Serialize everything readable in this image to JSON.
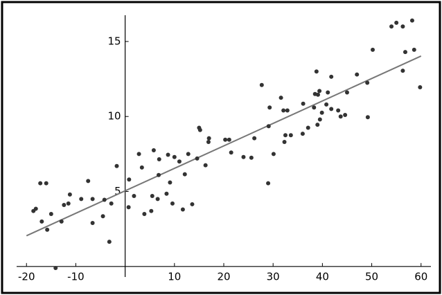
{
  "chart_data": {
    "type": "scatter",
    "x": [
      -18.6,
      -18.1,
      -17.2,
      -16,
      -16.9,
      -15.8,
      -15,
      -14.1,
      -12.9,
      -12.4,
      -11.5,
      -11.2,
      -8.9,
      -7.5,
      -6.6,
      -6.6,
      -4.5,
      -4.2,
      -3.2,
      -2.8,
      -1.7,
      0.7,
      0.8,
      1.8,
      2.8,
      3.4,
      3.9,
      5.3,
      5.5,
      5.8,
      6.6,
      6.8,
      6.9,
      8.4,
      8.7,
      9.1,
      9.6,
      10,
      11,
      11.7,
      12.1,
      12.8,
      13.6,
      14.6,
      15,
      15.2,
      16.3,
      16.9,
      17,
      20.3,
      21.1,
      21.5,
      24,
      25.6,
      26.2,
      27.7,
      29,
      29.3,
      29.1,
      30.1,
      31.6,
      32.1,
      32.3,
      32.5,
      32.9,
      33.6,
      36,
      36.1,
      37.1,
      38.3,
      38.5,
      38.8,
      39,
      39.1,
      39.4,
      39.5,
      39.9,
      40.8,
      41.1,
      41.8,
      41.8,
      43.2,
      43.7,
      44.6,
      45,
      47,
      49.1,
      49.2,
      50.2,
      54,
      55,
      56.3,
      56.3,
      56.8,
      58.2,
      58.6,
      59.8
    ],
    "series": [
      {
        "color": "#333333",
        "values": [
          3.7,
          3.85,
          5.55,
          5.55,
          3.0,
          2.45,
          3.5,
          -0.1,
          3.0,
          4.1,
          4.2,
          4.8,
          4.5,
          5.7,
          2.9,
          4.5,
          3.35,
          4.45,
          1.65,
          4.2,
          6.7,
          3.95,
          5.8,
          4.7,
          7.5,
          6.6,
          3.5,
          3.7,
          4.7,
          7.75,
          4.5,
          6.1,
          7.15,
          4.85,
          7.45,
          5.6,
          4.2,
          7.3,
          7.0,
          3.8,
          6.15,
          7.5,
          4.15,
          7.2,
          9.25,
          9.1,
          6.75,
          8.3,
          8.55,
          8.45,
          8.45,
          7.6,
          7.3,
          7.25,
          8.55,
          12.1,
          5.55,
          10.6,
          9.35,
          7.5,
          11.25,
          10.4,
          8.3,
          8.75,
          10.4,
          8.75,
          8.85,
          10.85,
          9.25,
          10.6,
          11.5,
          13.0,
          9.45,
          11.45,
          11.7,
          9.8,
          10.25,
          10.8,
          11.6,
          12.65,
          10.5,
          10.4,
          10.0,
          10.1,
          11.6,
          12.8,
          12.25,
          9.95,
          14.45,
          16.0,
          16.25,
          16.0,
          13.05,
          14.3,
          16.4,
          14.45,
          11.95
        ]
      }
    ],
    "fit_line": {
      "color": "#777777",
      "x": [
        -20,
        60
      ],
      "y": [
        2.05,
        14.03
      ]
    },
    "xlim": [
      -22,
      62
    ],
    "ylim": [
      -0.7,
      16.75
    ],
    "xticks": [
      -20,
      -10,
      10,
      20,
      30,
      40,
      50,
      60
    ],
    "yticks": [
      5,
      10,
      15
    ]
  }
}
